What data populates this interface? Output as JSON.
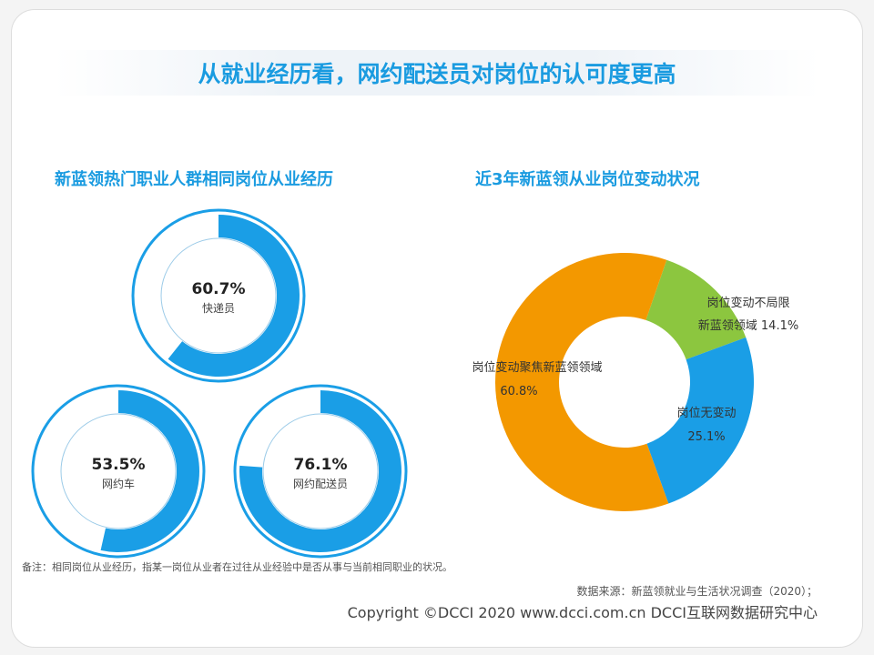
{
  "title": "从就业经历看，网约配送员对岗位的认可度更高",
  "chart_data": [
    {
      "type": "pie",
      "variant": "radial-progress",
      "title": "新蓝领热门职业人群相同岗位从业经历",
      "series": [
        {
          "name": "快递员",
          "value": 60.7,
          "label": "60.7%"
        },
        {
          "name": "网约车",
          "value": 53.5,
          "label": "53.5%"
        },
        {
          "name": "网约配送员",
          "value": 76.1,
          "label": "76.1%"
        }
      ],
      "color": "#1a9ee6"
    },
    {
      "type": "pie",
      "variant": "donut",
      "title": "近3年新蓝领从业岗位变动状况",
      "slices": [
        {
          "name": "岗位变动不局限新蓝领领域",
          "value": 14.1,
          "label": "14.1%",
          "color": "#8cc63f"
        },
        {
          "name": "岗位无变动",
          "value": 25.1,
          "label": "25.1%",
          "color": "#1a9ee6"
        },
        {
          "name": "岗位变动聚焦新蓝领领域",
          "value": 60.8,
          "label": "60.8%",
          "color": "#f39800"
        }
      ]
    }
  ],
  "note": "备注：相同岗位从业经历，指某一岗位从业者在过往从业经验中是否从事与当前相同职业的状况。",
  "source": "数据来源：新蓝领就业与生活状况调查（2020）；",
  "copyright": "Copyright ©DCCI 2020  www.dcci.com.cn  DCCI互联网数据研究中心"
}
